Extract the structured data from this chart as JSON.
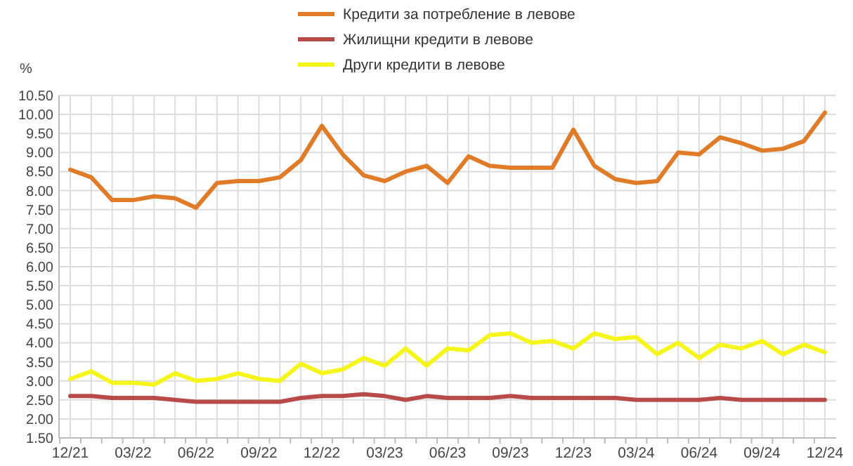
{
  "chart_data": {
    "type": "line",
    "ylabel": "%",
    "legend": "top",
    "grid": true,
    "line_style": "solid",
    "marker": "none",
    "categories": [
      "12/21",
      null,
      null,
      "03/22",
      null,
      null,
      "06/22",
      null,
      null,
      "09/22",
      null,
      null,
      "12/22",
      null,
      null,
      "03/23",
      null,
      null,
      "06/23",
      null,
      null,
      "09/23",
      null,
      null,
      "12/23",
      null,
      null,
      "03/24",
      null,
      null,
      "06/24",
      null,
      null,
      "09/24",
      null,
      null,
      "12/24"
    ],
    "ylim": [
      1.5,
      10.5
    ],
    "yticks": [
      {
        "value": 1.5,
        "label": "1.50"
      },
      {
        "value": 2,
        "label": "2.00"
      },
      {
        "value": 2.5,
        "label": "2.50"
      },
      {
        "value": 3,
        "label": "3.00"
      },
      {
        "value": 3.5,
        "label": "3.50"
      },
      {
        "value": 4,
        "label": "4.00"
      },
      {
        "value": 4.5,
        "label": "4.50"
      },
      {
        "value": 5,
        "label": "5.00"
      },
      {
        "value": 5.5,
        "label": "5.50"
      },
      {
        "value": 6,
        "label": "6.00"
      },
      {
        "value": 6.5,
        "label": "6.50"
      },
      {
        "value": 7,
        "label": "7.00"
      },
      {
        "value": 7.5,
        "label": "7.50"
      },
      {
        "value": 8,
        "label": "8.00"
      },
      {
        "value": 8.5,
        "label": "8.50"
      },
      {
        "value": 9,
        "label": "9.00"
      },
      {
        "value": 9.5,
        "label": "9.50"
      },
      {
        "value": 10,
        "label": "10.00"
      },
      {
        "value": 10.5,
        "label": "10.50"
      }
    ],
    "series": [
      {
        "name": "Кредити за потребление в левове",
        "color": "#e07b28",
        "values": [
          8.55,
          8.35,
          7.75,
          7.75,
          7.85,
          7.8,
          7.55,
          8.2,
          8.25,
          8.25,
          8.35,
          8.8,
          9.7,
          8.95,
          8.4,
          8.25,
          8.5,
          8.65,
          8.2,
          8.9,
          8.65,
          8.6,
          8.6,
          8.6,
          9.6,
          8.65,
          8.3,
          8.2,
          8.25,
          9.0,
          8.95,
          9.4,
          9.25,
          9.05,
          9.1,
          9.3,
          10.05
        ]
      },
      {
        "name": "Жилищни кредити в левове",
        "color": "#b84a4a",
        "values": [
          2.6,
          2.6,
          2.55,
          2.55,
          2.55,
          2.5,
          2.45,
          2.45,
          2.45,
          2.45,
          2.45,
          2.55,
          2.6,
          2.6,
          2.65,
          2.6,
          2.5,
          2.6,
          2.55,
          2.55,
          2.55,
          2.6,
          2.55,
          2.55,
          2.55,
          2.55,
          2.55,
          2.5,
          2.5,
          2.5,
          2.5,
          2.55,
          2.5,
          2.5,
          2.5,
          2.5,
          2.5
        ]
      },
      {
        "name": "Други кредити в левове",
        "color": "#f5f51a",
        "values": [
          3.05,
          3.25,
          2.95,
          2.95,
          2.9,
          3.2,
          3.0,
          3.05,
          3.2,
          3.05,
          3.0,
          3.45,
          3.2,
          3.3,
          3.6,
          3.4,
          3.85,
          3.4,
          3.85,
          3.8,
          4.2,
          4.25,
          4.0,
          4.05,
          3.85,
          4.25,
          4.1,
          4.15,
          3.7,
          4.0,
          3.6,
          3.95,
          3.85,
          4.05,
          3.7,
          3.95,
          3.75
        ]
      }
    ]
  }
}
